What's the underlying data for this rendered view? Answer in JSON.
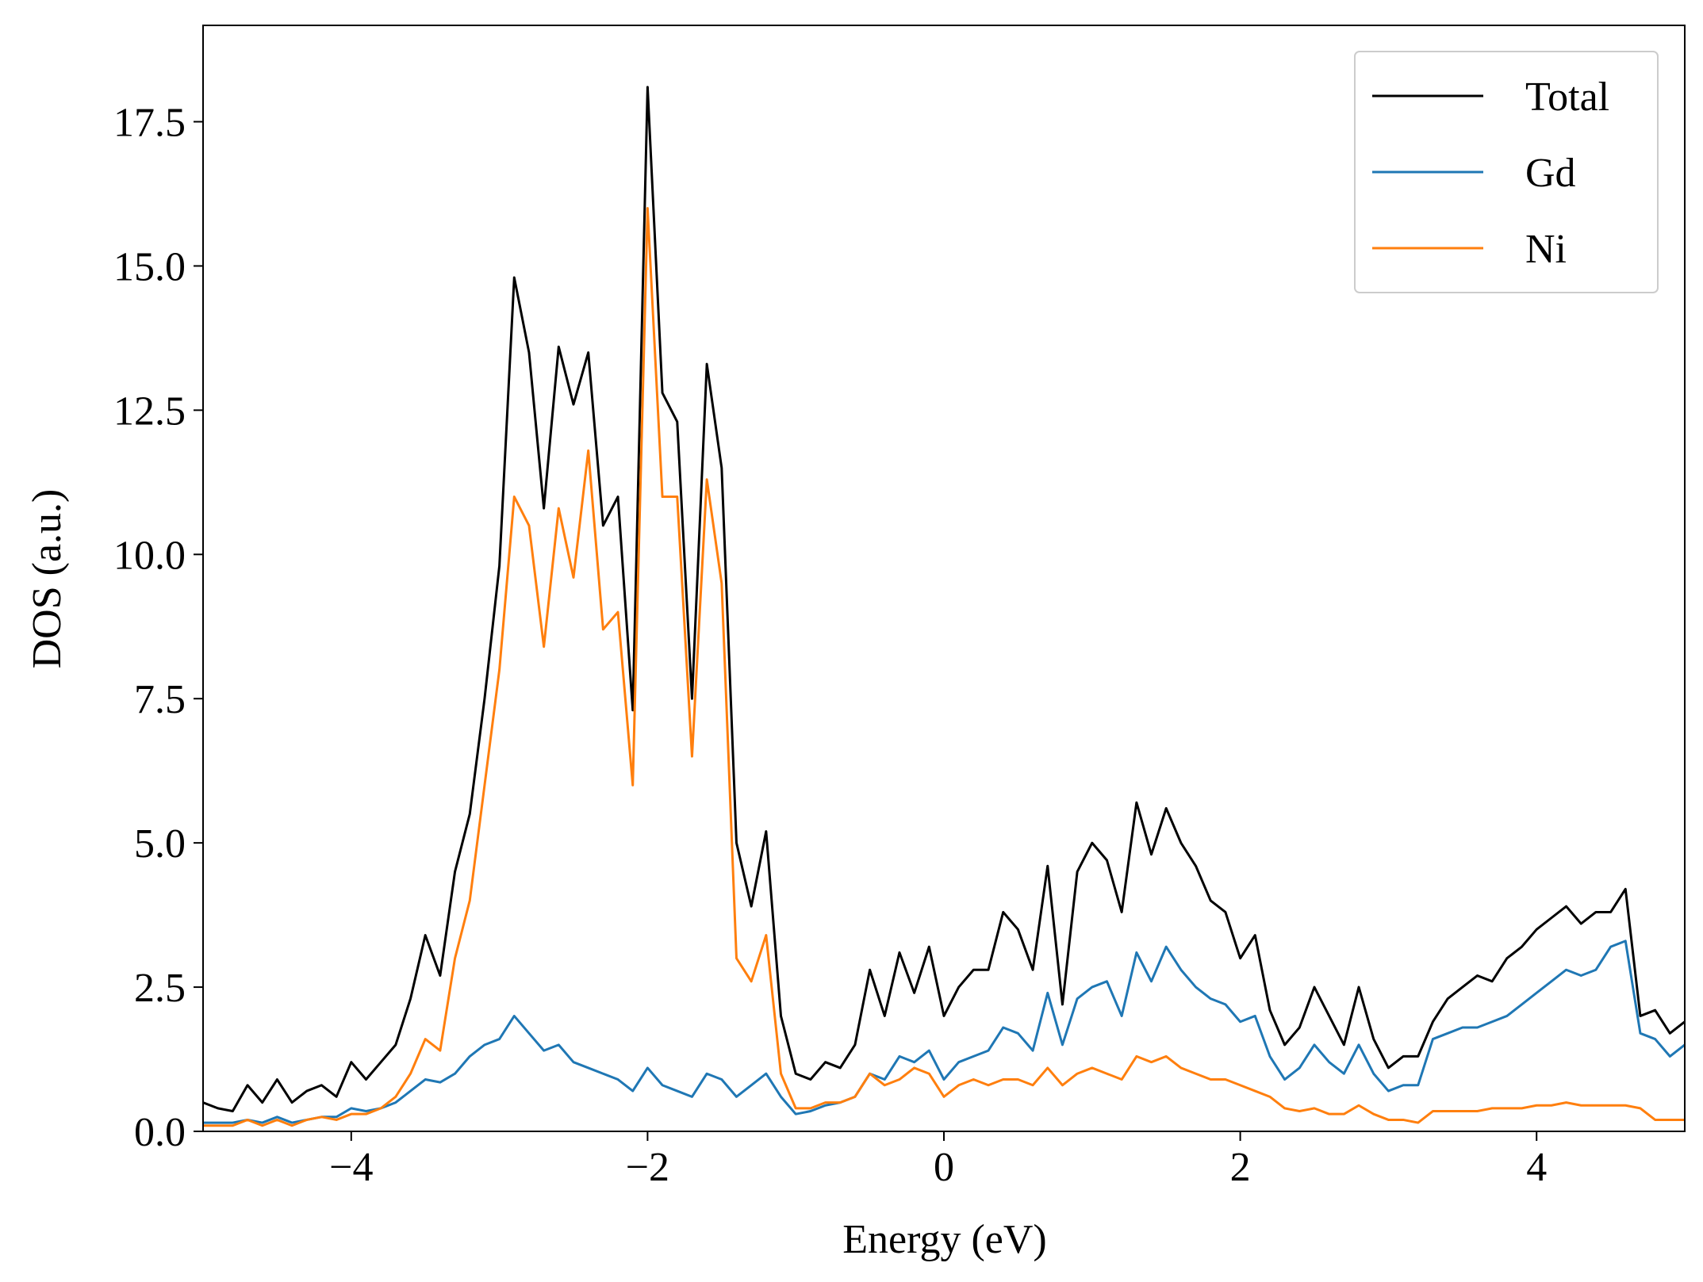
{
  "chart_data": {
    "type": "line",
    "xlabel": "Energy (eV)",
    "ylabel": "DOS (a.u.)",
    "x": [
      -5.0,
      -4.9,
      -4.8,
      -4.7,
      -4.6,
      -4.5,
      -4.4,
      -4.3,
      -4.2,
      -4.1,
      -4.0,
      -3.9,
      -3.8,
      -3.7,
      -3.6,
      -3.5,
      -3.4,
      -3.3,
      -3.2,
      -3.1,
      -3.0,
      -2.9,
      -2.8,
      -2.7,
      -2.6,
      -2.5,
      -2.4,
      -2.3,
      -2.2,
      -2.1,
      -2.0,
      -1.9,
      -1.8,
      -1.7,
      -1.6,
      -1.5,
      -1.4,
      -1.3,
      -1.2,
      -1.1,
      -1.0,
      -0.9,
      -0.8,
      -0.7,
      -0.6,
      -0.5,
      -0.4,
      -0.3,
      -0.2,
      -0.1,
      0.0,
      0.1,
      0.2,
      0.3,
      0.4,
      0.5,
      0.6,
      0.7,
      0.8,
      0.9,
      1.0,
      1.1,
      1.2,
      1.3,
      1.4,
      1.5,
      1.6,
      1.7,
      1.8,
      1.9,
      2.0,
      2.1,
      2.2,
      2.3,
      2.4,
      2.5,
      2.6,
      2.7,
      2.8,
      2.9,
      3.0,
      3.1,
      3.2,
      3.3,
      3.4,
      3.5,
      3.6,
      3.7,
      3.8,
      3.9,
      4.0,
      4.1,
      4.2,
      4.3,
      4.4,
      4.5,
      4.6,
      4.7,
      4.8,
      4.9,
      5.0
    ],
    "series": [
      {
        "name": "Total",
        "color": "#000000",
        "values": [
          0.5,
          0.4,
          0.35,
          0.8,
          0.5,
          0.9,
          0.5,
          0.7,
          0.8,
          0.6,
          1.2,
          0.9,
          1.2,
          1.5,
          2.3,
          3.4,
          2.7,
          4.5,
          5.5,
          7.5,
          9.8,
          14.8,
          13.5,
          10.8,
          13.6,
          12.6,
          13.5,
          10.5,
          11.0,
          7.3,
          18.1,
          12.8,
          12.3,
          7.5,
          13.3,
          11.5,
          5.0,
          3.9,
          5.2,
          2.0,
          1.0,
          0.9,
          1.2,
          1.1,
          1.5,
          2.8,
          2.0,
          3.1,
          2.4,
          3.2,
          2.0,
          2.5,
          2.8,
          2.8,
          3.8,
          3.5,
          2.8,
          4.6,
          2.2,
          4.5,
          5.0,
          4.7,
          3.8,
          5.7,
          4.8,
          5.6,
          5.0,
          4.6,
          4.0,
          3.8,
          3.0,
          3.4,
          2.1,
          1.5,
          1.8,
          2.5,
          2.0,
          1.5,
          2.5,
          1.6,
          1.1,
          1.3,
          1.3,
          1.9,
          2.3,
          2.5,
          2.7,
          2.6,
          3.0,
          3.2,
          3.5,
          3.7,
          3.9,
          3.6,
          3.8,
          3.8,
          4.2,
          2.0,
          2.1,
          1.7,
          1.9
        ]
      },
      {
        "name": "Gd",
        "color": "#1f77b4",
        "values": [
          0.15,
          0.15,
          0.15,
          0.2,
          0.15,
          0.25,
          0.15,
          0.2,
          0.25,
          0.25,
          0.4,
          0.35,
          0.4,
          0.5,
          0.7,
          0.9,
          0.85,
          1.0,
          1.3,
          1.5,
          1.6,
          2.0,
          1.7,
          1.4,
          1.5,
          1.2,
          1.1,
          1.0,
          0.9,
          0.7,
          1.1,
          0.8,
          0.7,
          0.6,
          1.0,
          0.9,
          0.6,
          0.8,
          1.0,
          0.6,
          0.3,
          0.35,
          0.45,
          0.5,
          0.6,
          1.0,
          0.9,
          1.3,
          1.2,
          1.4,
          0.9,
          1.2,
          1.3,
          1.4,
          1.8,
          1.7,
          1.4,
          2.4,
          1.5,
          2.3,
          2.5,
          2.6,
          2.0,
          3.1,
          2.6,
          3.2,
          2.8,
          2.5,
          2.3,
          2.2,
          1.9,
          2.0,
          1.3,
          0.9,
          1.1,
          1.5,
          1.2,
          1.0,
          1.5,
          1.0,
          0.7,
          0.8,
          0.8,
          1.6,
          1.7,
          1.8,
          1.8,
          1.9,
          2.0,
          2.2,
          2.4,
          2.6,
          2.8,
          2.7,
          2.8,
          3.2,
          3.3,
          1.7,
          1.6,
          1.3,
          1.5
        ]
      },
      {
        "name": "Ni",
        "color": "#ff7f0e",
        "values": [
          0.1,
          0.1,
          0.1,
          0.2,
          0.1,
          0.2,
          0.1,
          0.2,
          0.25,
          0.2,
          0.3,
          0.3,
          0.4,
          0.6,
          1.0,
          1.6,
          1.4,
          3.0,
          4.0,
          6.0,
          8.0,
          11.0,
          10.5,
          8.4,
          10.8,
          9.6,
          11.8,
          8.7,
          9.0,
          6.0,
          16.0,
          11.0,
          11.0,
          6.5,
          11.3,
          9.5,
          3.0,
          2.6,
          3.4,
          1.0,
          0.4,
          0.4,
          0.5,
          0.5,
          0.6,
          1.0,
          0.8,
          0.9,
          1.1,
          1.0,
          0.6,
          0.8,
          0.9,
          0.8,
          0.9,
          0.9,
          0.8,
          1.1,
          0.8,
          1.0,
          1.1,
          1.0,
          0.9,
          1.3,
          1.2,
          1.3,
          1.1,
          1.0,
          0.9,
          0.9,
          0.8,
          0.7,
          0.6,
          0.4,
          0.35,
          0.4,
          0.3,
          0.3,
          0.45,
          0.3,
          0.2,
          0.2,
          0.15,
          0.35,
          0.35,
          0.35,
          0.35,
          0.4,
          0.4,
          0.4,
          0.45,
          0.45,
          0.5,
          0.45,
          0.45,
          0.45,
          0.45,
          0.4,
          0.2,
          0.2,
          0.2
        ]
      }
    ],
    "xlim": [
      -5,
      5
    ],
    "xticks": [
      {
        "value": -4,
        "label": "−4"
      },
      {
        "value": -2,
        "label": "−2"
      },
      0,
      2,
      4
    ],
    "ylim": [
      0,
      19.17
    ],
    "yticks": [
      {
        "value": 0,
        "label": "0.0"
      },
      {
        "value": 2.5,
        "label": "2.5"
      },
      {
        "value": 5,
        "label": "5.0"
      },
      {
        "value": 7.5,
        "label": "7.5"
      },
      {
        "value": 10,
        "label": "10.0"
      },
      {
        "value": 12.5,
        "label": "12.5"
      },
      {
        "value": 15,
        "label": "15.0"
      },
      {
        "value": 17.5,
        "label": "17.5"
      }
    ],
    "legend": "upper right"
  }
}
